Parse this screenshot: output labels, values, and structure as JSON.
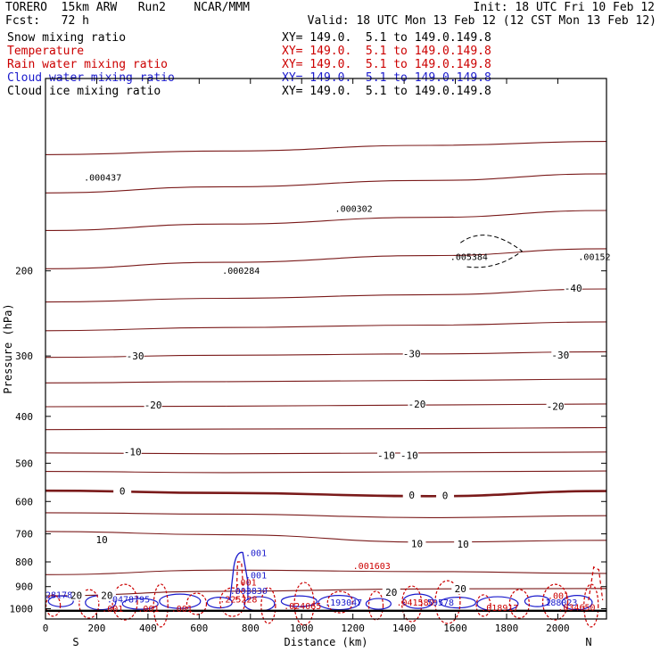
{
  "header": {
    "model": "TORERO  15km ARW   Run2    NCAR/MMM",
    "init": "Init: 18 UTC Fri 10 Feb 12",
    "fcst": "Fcst:   72 h",
    "valid": "Valid: 18 UTC Mon 13 Feb 12 (12 CST Mon 13 Feb 12)"
  },
  "legend": [
    {
      "label": "Snow mixing ratio",
      "xy": "XY= 149.0.  5.1 to 149.0.149.8",
      "color": "#000000"
    },
    {
      "label": "Temperature",
      "xy": "XY= 149.0.  5.1 to 149.0.149.8",
      "color": "#cc0000"
    },
    {
      "label": "Rain water mixing ratio",
      "xy": "XY= 149.0.  5.1 to 149.0.149.8",
      "color": "#cc0000"
    },
    {
      "label": "Cloud water mixing ratio",
      "xy": "XY= 149.0.  5.1 to 149.0.149.8",
      "color": "#1a1acc"
    },
    {
      "label": "Cloud ice mixing ratio",
      "xy": "XY= 149.0.  5.1 to 149.0.149.8",
      "color": "#000000"
    }
  ],
  "chart_data": {
    "type": "line",
    "xlabel": "Distance (km)",
    "ylabel": "Pressure (hPa)",
    "xlim": [
      0,
      2190
    ],
    "ylim": [
      1050,
      80
    ],
    "y_scale": "log",
    "xticks": [
      0,
      200,
      400,
      600,
      800,
      1000,
      1200,
      1400,
      1600,
      1800,
      2000
    ],
    "yticks": [
      200,
      300,
      400,
      500,
      600,
      700,
      800,
      900,
      1000
    ],
    "x_end_labels": {
      "left": "S",
      "right": "N"
    },
    "temperature_isotherms": [
      {
        "value": -60,
        "p": [
          115,
          113,
          110,
          108
        ]
      },
      {
        "value": -55,
        "p": [
          138,
          134,
          130,
          126
        ]
      },
      {
        "value": -50,
        "p": [
          165,
          160,
          155,
          150
        ]
      },
      {
        "value": -45,
        "p": [
          198,
          192,
          186,
          180
        ]
      },
      {
        "value": -40,
        "p": [
          232,
          228,
          224,
          218
        ]
      },
      {
        "value": -35,
        "p": [
          266,
          262,
          259,
          255
        ]
      },
      {
        "value": -30,
        "p": [
          302,
          299,
          297,
          294
        ]
      },
      {
        "value": -25,
        "p": [
          341,
          339,
          337,
          335
        ]
      },
      {
        "value": -20,
        "p": [
          382,
          381,
          379,
          377
        ]
      },
      {
        "value": -15,
        "p": [
          426,
          425,
          424,
          422
        ]
      },
      {
        "value": -10,
        "p": [
          476,
          478,
          476,
          474
        ]
      },
      {
        "value": -5,
        "p": [
          520,
          523,
          521,
          519
        ]
      },
      {
        "value": 0,
        "p": [
          570,
          576,
          585,
          571
        ]
      },
      {
        "value": 5,
        "p": [
          633,
          637,
          648,
          642
        ]
      },
      {
        "value": 10,
        "p": [
          692,
          703,
          728,
          722
        ]
      },
      {
        "value": 15,
        "p": [
          850,
          832,
          838,
          845
        ]
      },
      {
        "value": 20,
        "p": [
          940,
          920,
          910,
          908
        ]
      }
    ],
    "isotherm_x": [
      0,
      700,
      1500,
      2190
    ],
    "isotherm_labels": [
      {
        "text": "-40",
        "x": 2060,
        "p": 218
      },
      {
        "text": "-30",
        "x": 350,
        "p": 301
      },
      {
        "text": "-30",
        "x": 1430,
        "p": 298
      },
      {
        "text": "-30",
        "x": 2010,
        "p": 300
      },
      {
        "text": "-20",
        "x": 420,
        "p": 380
      },
      {
        "text": "-20",
        "x": 1450,
        "p": 379
      },
      {
        "text": "-20",
        "x": 1990,
        "p": 383
      },
      {
        "text": "-10",
        "x": 340,
        "p": 475
      },
      {
        "text": "-10",
        "x": 1330,
        "p": 484
      },
      {
        "text": "-10",
        "x": 1420,
        "p": 484
      },
      {
        "text": "0",
        "x": 300,
        "p": 573
      },
      {
        "text": "0",
        "x": 1430,
        "p": 584
      },
      {
        "text": "0",
        "x": 1560,
        "p": 586
      },
      {
        "text": "10",
        "x": 220,
        "p": 722
      },
      {
        "text": "10",
        "x": 1450,
        "p": 736
      },
      {
        "text": "10",
        "x": 1630,
        "p": 738
      },
      {
        "text": "20",
        "x": 1620,
        "p": 913
      },
      {
        "text": "20",
        "x": 1350,
        "p": 928
      },
      {
        "text": "20",
        "x": 240,
        "p": 942
      },
      {
        "text": "20",
        "x": 120,
        "p": 942
      }
    ],
    "maxima_labels": [
      {
        "text": ".000437",
        "x": 150,
        "p": 130,
        "color": "#000000"
      },
      {
        "text": ".000302",
        "x": 1130,
        "p": 151,
        "color": "#000000"
      },
      {
        "text": ".000284",
        "x": 690,
        "p": 203,
        "color": "#000000"
      },
      {
        "text": ".005384",
        "x": 1580,
        "p": 190,
        "color": "#000000"
      },
      {
        "text": ".00152",
        "x": 2080,
        "p": 190,
        "color": "#000000"
      },
      {
        "text": ".001",
        "x": 780,
        "p": 778,
        "color": "#1a1acc"
      },
      {
        "text": ".001",
        "x": 780,
        "p": 866,
        "color": "#1a1acc"
      },
      {
        "text": ".001603",
        "x": 1200,
        "p": 828,
        "color": "#cc0000"
      },
      {
        "text": ".001",
        "x": 740,
        "p": 896,
        "color": "#cc0000"
      },
      {
        "text": ".093830",
        "x": 720,
        "p": 933,
        "color": "#1a1acc"
      },
      {
        "text": "28178",
        "x": 0,
        "p": 951,
        "color": "#1a1acc"
      },
      {
        "text": ".0478795",
        "x": 240,
        "p": 970,
        "color": "#1a1acc"
      },
      {
        "text": ".225228",
        "x": 680,
        "p": 970,
        "color": "#cc0000"
      },
      {
        "text": ".193047",
        "x": 1090,
        "p": 985,
        "color": "#1a1acc"
      },
      {
        "text": ".041580",
        "x": 1370,
        "p": 985,
        "color": "#cc0000"
      },
      {
        "text": "59578",
        "x": 1490,
        "p": 985,
        "color": "#1a1acc"
      },
      {
        "text": ".188023",
        "x": 1930,
        "p": 985,
        "color": "#1a1acc"
      },
      {
        "text": ".024065",
        "x": 930,
        "p": 1003,
        "color": "#cc0000"
      },
      {
        "text": ".018917",
        "x": 1700,
        "p": 1010,
        "color": "#cc0000"
      },
      {
        "text": ".034650",
        "x": 2000,
        "p": 1008,
        "color": "#cc0000"
      },
      {
        "text": ".001",
        "x": 220,
        "p": 1015,
        "color": "#cc0000"
      },
      {
        "text": ".001",
        "x": 360,
        "p": 1015,
        "color": "#cc0000"
      },
      {
        "text": ".001",
        "x": 490,
        "p": 1015,
        "color": "#cc0000"
      },
      {
        "text": ".001",
        "x": 1960,
        "p": 955,
        "color": "#cc0000"
      }
    ],
    "surface_p": 1010,
    "colors": {
      "temperature": "#7a1a1a",
      "rain": "#cc0000",
      "cloud_water": "#1a1acc",
      "snow": "#000000",
      "axis": "#000000"
    }
  }
}
